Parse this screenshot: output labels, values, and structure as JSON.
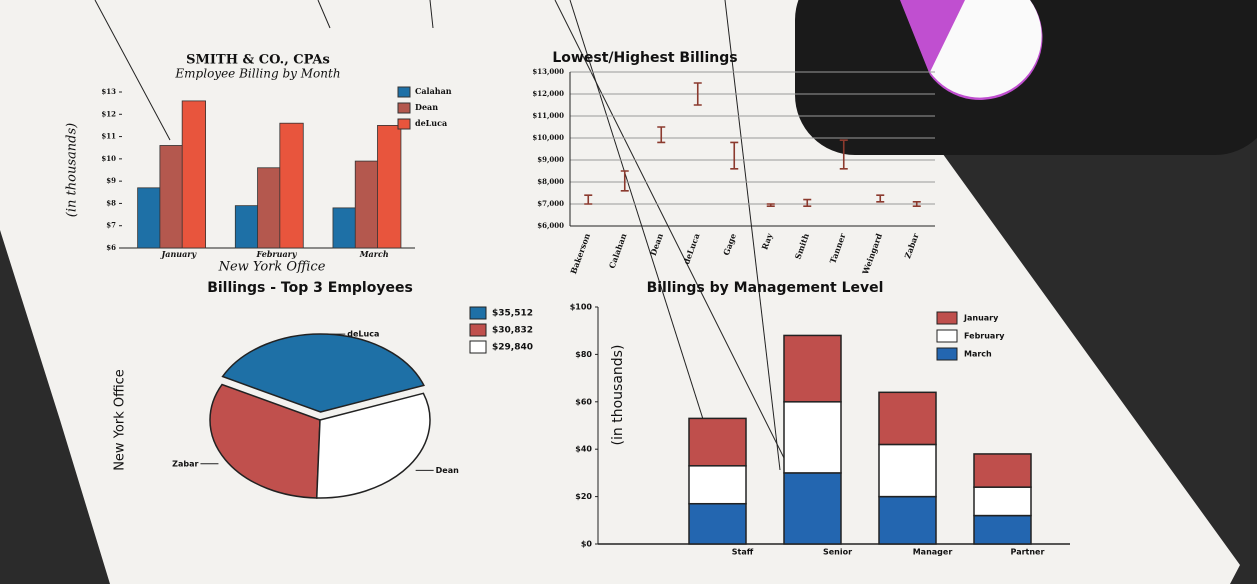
{
  "chart_data": [
    {
      "type": "bar",
      "title": "SMITH & CO., CPAs",
      "subtitle": "Employee Billing by Month",
      "y_label": "(in thousands)",
      "x_label": "New York Office",
      "categories": [
        "January",
        "February",
        "March"
      ],
      "series": [
        {
          "name": "Calahan",
          "color": "#1e70a6",
          "values": [
            8.7,
            7.9,
            7.8
          ]
        },
        {
          "name": "Dean",
          "color": "#b4584e",
          "values": [
            10.6,
            9.6,
            9.9
          ]
        },
        {
          "name": "deLuca",
          "color": "#e8553d",
          "values": [
            12.6,
            11.6,
            11.5
          ]
        }
      ],
      "ylim": [
        6,
        13
      ],
      "yticks": [
        {
          "value": 6,
          "label": "$6"
        },
        {
          "value": 7,
          "label": "$7"
        },
        {
          "value": 8,
          "label": "$8"
        },
        {
          "value": 9,
          "label": "$9"
        },
        {
          "value": 10,
          "label": "$10"
        },
        {
          "value": 11,
          "label": "$11"
        },
        {
          "value": 12,
          "label": "$12"
        },
        {
          "value": 13,
          "label": "$13"
        }
      ],
      "grid": false
    },
    {
      "type": "range",
      "title": "Lowest/Highest Billings",
      "categories": [
        "Bakerson",
        "Calahan",
        "Dean",
        "deLuca",
        "Gage",
        "Ray",
        "Smith",
        "Tanner",
        "Weingard",
        "Zabar"
      ],
      "low": [
        7.0,
        7.6,
        9.8,
        11.5,
        8.6,
        6.9,
        6.9,
        8.6,
        7.1,
        6.9
      ],
      "high": [
        7.4,
        8.5,
        10.5,
        12.5,
        9.8,
        7.0,
        7.2,
        9.9,
        7.4,
        7.1
      ],
      "color": "#8b3a2e",
      "ylim": [
        6000,
        13000
      ],
      "yticks": [
        {
          "value": 6000,
          "label": "$6,000"
        },
        {
          "value": 7000,
          "label": "$7,000"
        },
        {
          "value": 8000,
          "label": "$8,000"
        },
        {
          "value": 9000,
          "label": "$9,000"
        },
        {
          "value": 10000,
          "label": "$10,000"
        },
        {
          "value": 11000,
          "label": "$11,000"
        },
        {
          "value": 12000,
          "label": "$12,000"
        },
        {
          "value": 13000,
          "label": "$13,000"
        }
      ],
      "value_scale": 1000,
      "grid": true
    },
    {
      "type": "pie",
      "title": "Billings - Top 3 Employees",
      "side_label": "New York Office",
      "categories": [
        "deLuca",
        "Zabar",
        "Dean"
      ],
      "values": [
        35512,
        30832,
        29840
      ],
      "value_labels": [
        "$35,512",
        "$30,832",
        "$29,840"
      ],
      "colors": [
        "#1e70a6",
        "#c0504d",
        "#ffffff"
      ]
    },
    {
      "type": "stacked_bar",
      "title": "Billings by Management Level",
      "y_label": "(in thousands)",
      "categories": [
        "Staff",
        "Senior",
        "Manager",
        "Partner"
      ],
      "series": [
        {
          "name": "January",
          "color": "#bf4f4c",
          "values": [
            20,
            28,
            22,
            14
          ]
        },
        {
          "name": "February",
          "color": "#ffffff",
          "values": [
            16,
            30,
            22,
            12
          ]
        },
        {
          "name": "March",
          "color": "#2366b0",
          "values": [
            17,
            30,
            20,
            12
          ]
        }
      ],
      "ylim": [
        0,
        100
      ],
      "yticks": [
        {
          "value": 0,
          "label": "$0"
        },
        {
          "value": 20,
          "label": "$20"
        },
        {
          "value": 40,
          "label": "$40"
        },
        {
          "value": 60,
          "label": "$60"
        },
        {
          "value": 80,
          "label": "$80"
        },
        {
          "value": 100,
          "label": "$100"
        }
      ],
      "grid": false
    }
  ]
}
